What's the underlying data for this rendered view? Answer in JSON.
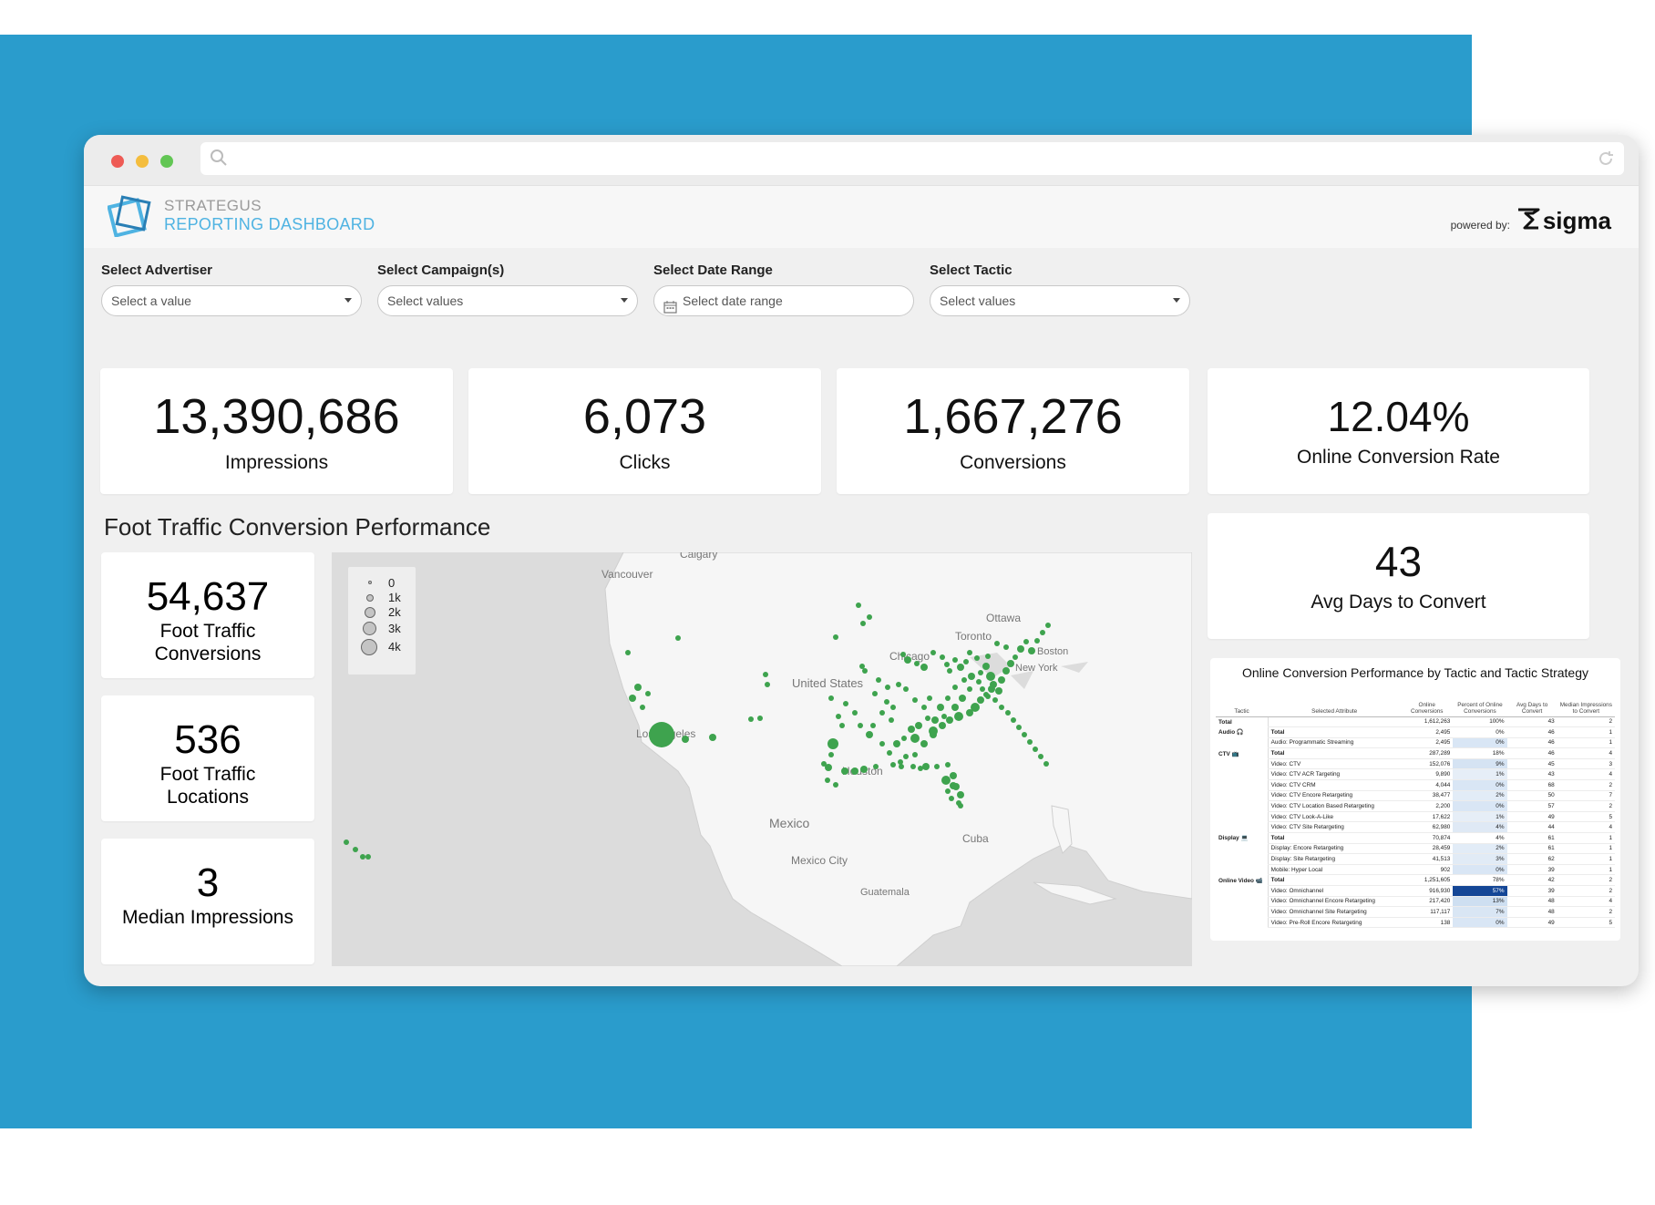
{
  "header": {
    "brand_line1": "STRATEGUS",
    "brand_line2": "REPORTING DASHBOARD",
    "powered_by": "powered by:",
    "sigma": "sigma"
  },
  "filters": [
    {
      "label": "Select Advertiser",
      "placeholder": "Select a value"
    },
    {
      "label": "Select Campaign(s)",
      "placeholder": "Select values"
    },
    {
      "label": "Select Date Range",
      "placeholder": "Select date range"
    },
    {
      "label": "Select Tactic",
      "placeholder": "Select values"
    }
  ],
  "kpis": {
    "impressions": {
      "value": "13,390,686",
      "label": "Impressions"
    },
    "clicks": {
      "value": "6,073",
      "label": "Clicks"
    },
    "conversions": {
      "value": "1,667,276",
      "label": "Conversions"
    },
    "online_rate": {
      "value": "12.04%",
      "label": "Online Conversion Rate"
    },
    "avg_days": {
      "value": "43",
      "label": "Avg Days to Convert"
    }
  },
  "foot_traffic": {
    "title": "Foot Traffic Conversion Performance",
    "conversions": {
      "value": "54,637",
      "label_line1": "Foot Traffic",
      "label_line2": "Conversions"
    },
    "locations": {
      "value": "536",
      "label_line1": "Foot Traffic",
      "label_line2": "Locations"
    },
    "median": {
      "value": "3",
      "label": "Median Impressions"
    }
  },
  "map": {
    "legend": [
      "0",
      "1k",
      "2k",
      "3k",
      "4k"
    ],
    "labels": [
      "Calgary",
      "Vancouver",
      "Ottawa",
      "Toronto",
      "Chicago",
      "United States",
      "Los Angeles",
      "Houston",
      "Mexico",
      "Mexico City",
      "Cuba",
      "Guatemala",
      "Boston",
      "New York"
    ],
    "dot_color": "#3ea34e"
  },
  "table": {
    "title": "Online Conversion Performance by Tactic and Tactic Strategy",
    "columns": [
      "Tactic",
      "Selected Attribute",
      "Online Conversions",
      "Percent of Online Conversions",
      "Avg Days to Convert",
      "Median Impressions to Convert"
    ],
    "rows": [
      {
        "tactic": "Total",
        "attr": "",
        "conv": "1,612,263",
        "pct": "100%",
        "days": "43",
        "median": "2"
      },
      {
        "tactic": "Audio 🎧",
        "attr": "Total",
        "conv": "2,495",
        "pct": "0%",
        "days": "46",
        "median": "1"
      },
      {
        "tactic": "",
        "attr": "Audio: Programmatic Streaming",
        "conv": "2,495",
        "pct": "0%",
        "days": "46",
        "median": "1"
      },
      {
        "tactic": "CTV 📺",
        "attr": "Total",
        "conv": "287,289",
        "pct": "18%",
        "days": "46",
        "median": "4"
      },
      {
        "tactic": "",
        "attr": "Video: CTV",
        "conv": "152,076",
        "pct": "9%",
        "days": "45",
        "median": "3"
      },
      {
        "tactic": "",
        "attr": "Video: CTV ACR Targeting",
        "conv": "9,890",
        "pct": "1%",
        "days": "43",
        "median": "4"
      },
      {
        "tactic": "",
        "attr": "Video: CTV CRM",
        "conv": "4,044",
        "pct": "0%",
        "days": "68",
        "median": "2"
      },
      {
        "tactic": "",
        "attr": "Video: CTV Encore Retargeting",
        "conv": "38,477",
        "pct": "2%",
        "days": "50",
        "median": "7"
      },
      {
        "tactic": "",
        "attr": "Video: CTV Location Based Retargeting",
        "conv": "2,200",
        "pct": "0%",
        "days": "57",
        "median": "2"
      },
      {
        "tactic": "",
        "attr": "Video: CTV Look-A-Like",
        "conv": "17,622",
        "pct": "1%",
        "days": "49",
        "median": "5"
      },
      {
        "tactic": "",
        "attr": "Video: CTV Site Retargeting",
        "conv": "62,980",
        "pct": "4%",
        "days": "44",
        "median": "4"
      },
      {
        "tactic": "Display 💻",
        "attr": "Total",
        "conv": "70,874",
        "pct": "4%",
        "days": "61",
        "median": "1"
      },
      {
        "tactic": "",
        "attr": "Display: Encore Retargeting",
        "conv": "28,459",
        "pct": "2%",
        "days": "61",
        "median": "1"
      },
      {
        "tactic": "",
        "attr": "Display: Site Retargeting",
        "conv": "41,513",
        "pct": "3%",
        "days": "62",
        "median": "1"
      },
      {
        "tactic": "",
        "attr": "Mobile: Hyper Local",
        "conv": "902",
        "pct": "0%",
        "days": "39",
        "median": "1"
      },
      {
        "tactic": "Online Video 📹",
        "attr": "Total",
        "conv": "1,251,605",
        "pct": "78%",
        "days": "42",
        "median": "2"
      },
      {
        "tactic": "",
        "attr": "Video: Omnichannel",
        "conv": "916,930",
        "pct": "57%",
        "days": "39",
        "median": "2"
      },
      {
        "tactic": "",
        "attr": "Video: Omnichannel Encore Retargeting",
        "conv": "217,420",
        "pct": "13%",
        "days": "48",
        "median": "4"
      },
      {
        "tactic": "",
        "attr": "Video: Omnichannel Site Retargeting",
        "conv": "117,117",
        "pct": "7%",
        "days": "48",
        "median": "2"
      },
      {
        "tactic": "",
        "attr": "Video: Pre-Roll Encore Retargeting",
        "conv": "138",
        "pct": "0%",
        "days": "49",
        "median": "5"
      }
    ]
  }
}
